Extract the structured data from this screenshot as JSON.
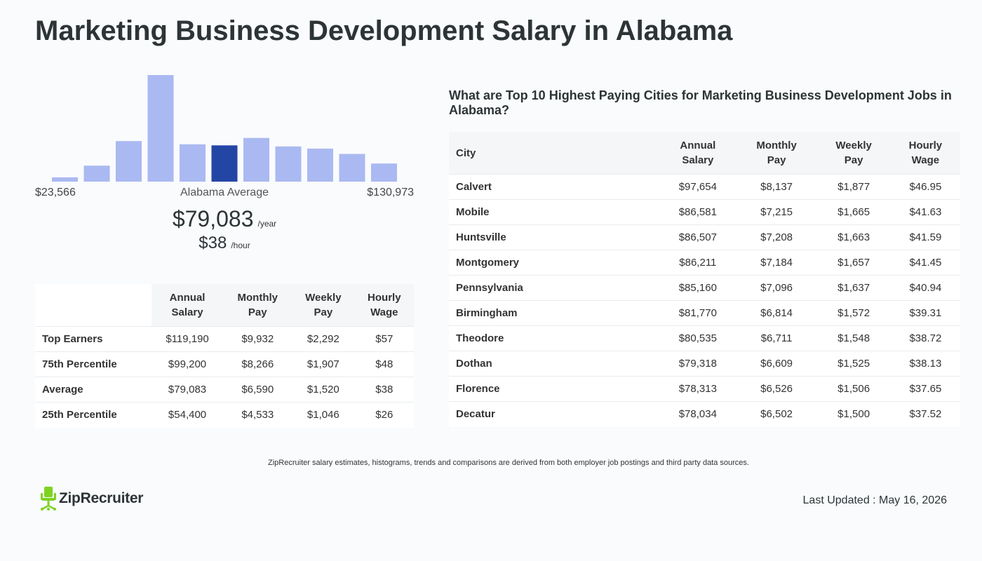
{
  "title": "Marketing Business Development Salary in Alabama",
  "chart_data": {
    "type": "bar",
    "values": [
      4,
      15,
      38,
      100,
      35,
      34,
      41,
      33,
      31,
      26,
      17
    ],
    "highlight_index": 5,
    "ylim": [
      0,
      100
    ],
    "colors": {
      "bar": "#aab9f1",
      "highlight": "#2346a5"
    },
    "min_label": "$23,566",
    "avg_label": "Alabama Average",
    "max_label": "$130,973"
  },
  "average": {
    "yearly": "$79,083",
    "yearly_unit": "/year",
    "hourly": "$38",
    "hourly_unit": "/hour"
  },
  "percentile_table": {
    "headers": [
      [
        "Annual",
        "Salary"
      ],
      [
        "Monthly",
        "Pay"
      ],
      [
        "Weekly",
        "Pay"
      ],
      [
        "Hourly",
        "Wage"
      ]
    ],
    "rows": [
      {
        "label": "Top Earners",
        "annual": "$119,190",
        "monthly": "$9,932",
        "weekly": "$2,292",
        "hourly": "$57"
      },
      {
        "label": "75th Percentile",
        "annual": "$99,200",
        "monthly": "$8,266",
        "weekly": "$1,907",
        "hourly": "$48"
      },
      {
        "label": "Average",
        "annual": "$79,083",
        "monthly": "$6,590",
        "weekly": "$1,520",
        "hourly": "$38"
      },
      {
        "label": "25th Percentile",
        "annual": "$54,400",
        "monthly": "$4,533",
        "weekly": "$1,046",
        "hourly": "$26"
      }
    ]
  },
  "cities_heading": "What are Top 10 Highest Paying Cities for Marketing Business Development Jobs in Alabama?",
  "city_table": {
    "city_header": "City",
    "headers": [
      [
        "Annual",
        "Salary"
      ],
      [
        "Monthly",
        "Pay"
      ],
      [
        "Weekly",
        "Pay"
      ],
      [
        "Hourly",
        "Wage"
      ]
    ],
    "rows": [
      {
        "city": "Calvert",
        "annual": "$97,654",
        "monthly": "$8,137",
        "weekly": "$1,877",
        "hourly": "$46.95"
      },
      {
        "city": "Mobile",
        "annual": "$86,581",
        "monthly": "$7,215",
        "weekly": "$1,665",
        "hourly": "$41.63"
      },
      {
        "city": "Huntsville",
        "annual": "$86,507",
        "monthly": "$7,208",
        "weekly": "$1,663",
        "hourly": "$41.59"
      },
      {
        "city": "Montgomery",
        "annual": "$86,211",
        "monthly": "$7,184",
        "weekly": "$1,657",
        "hourly": "$41.45"
      },
      {
        "city": "Pennsylvania",
        "annual": "$85,160",
        "monthly": "$7,096",
        "weekly": "$1,637",
        "hourly": "$40.94"
      },
      {
        "city": "Birmingham",
        "annual": "$81,770",
        "monthly": "$6,814",
        "weekly": "$1,572",
        "hourly": "$39.31"
      },
      {
        "city": "Theodore",
        "annual": "$80,535",
        "monthly": "$6,711",
        "weekly": "$1,548",
        "hourly": "$38.72"
      },
      {
        "city": "Dothan",
        "annual": "$79,318",
        "monthly": "$6,609",
        "weekly": "$1,525",
        "hourly": "$38.13"
      },
      {
        "city": "Florence",
        "annual": "$78,313",
        "monthly": "$6,526",
        "weekly": "$1,506",
        "hourly": "$37.65"
      },
      {
        "city": "Decatur",
        "annual": "$78,034",
        "monthly": "$6,502",
        "weekly": "$1,500",
        "hourly": "$37.52"
      }
    ]
  },
  "footnote": "ZipRecruiter salary estimates, histograms, trends and comparisons are derived from both employer job postings and third party data sources.",
  "logo": {
    "text": "ZipRecruiter",
    "icon": "chair-icon",
    "color": "#7ed321"
  },
  "last_updated": "Last Updated : May 16, 2026"
}
